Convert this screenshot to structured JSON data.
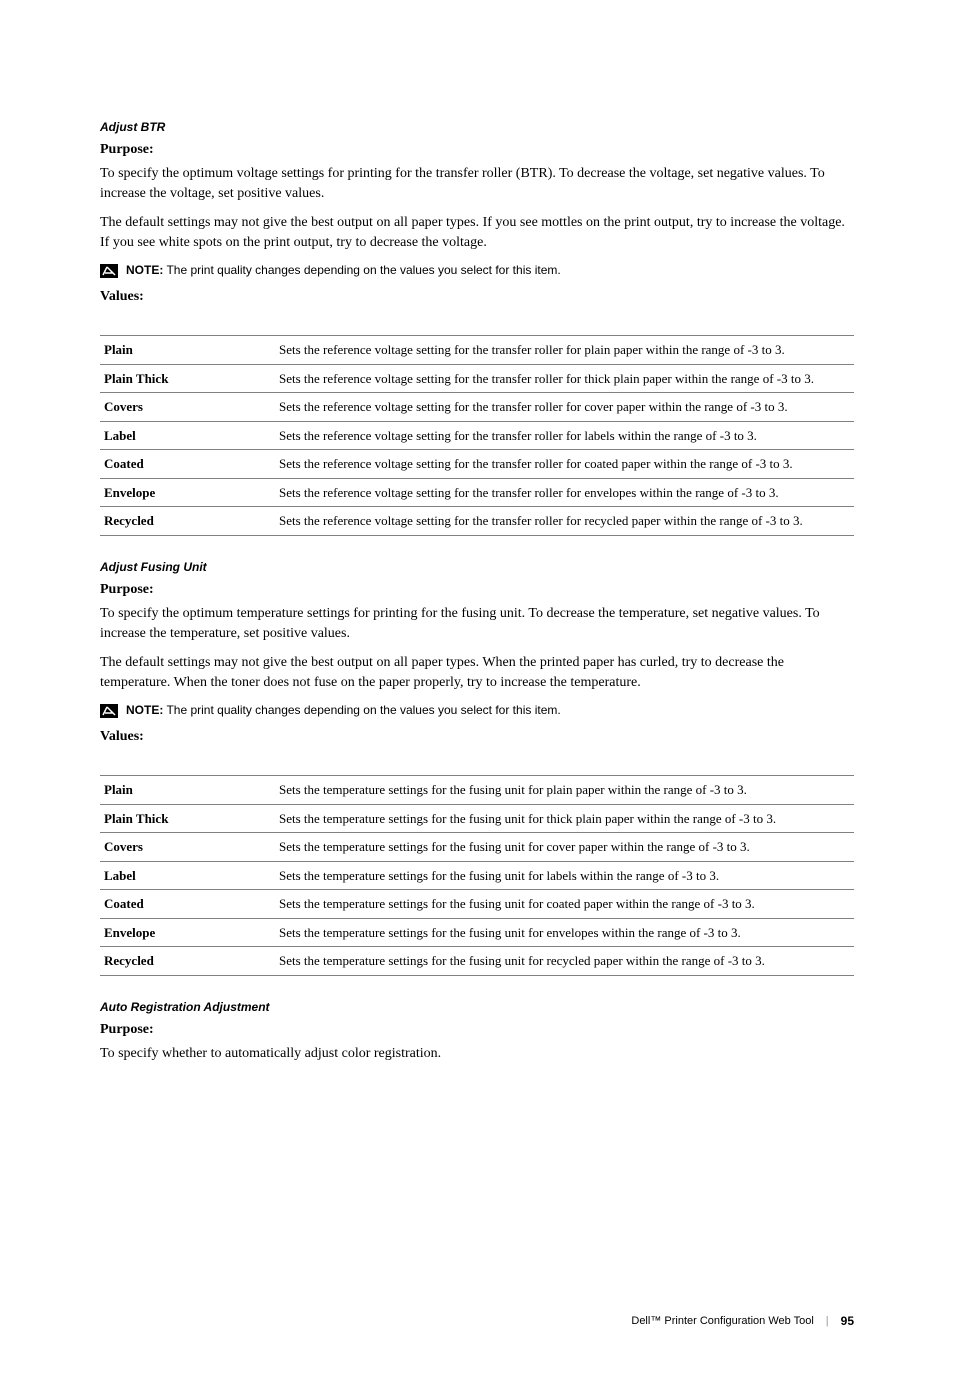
{
  "section1": {
    "heading": "Adjust BTR",
    "purposeLabel": "Purpose:",
    "purposeText1": "To specify the optimum voltage settings for printing for the transfer roller (BTR). To decrease the voltage, set negative values. To increase the voltage, set positive values.",
    "purposeText2": "The default settings may not give the best output on all paper types. If you see mottles on the print output, try to increase the voltage. If you see white spots on the print output, try to decrease the voltage.",
    "noteLabel": "NOTE:",
    "noteText": " The print quality changes depending on the values you select for this item.",
    "valuesLabel": "Values:",
    "rows": [
      {
        "name": "Plain",
        "desc": "Sets the reference voltage setting for the transfer roller for plain paper within the range of -3 to 3."
      },
      {
        "name": "Plain Thick",
        "desc": "Sets the reference voltage setting for the transfer roller for thick plain paper within the range of -3 to 3."
      },
      {
        "name": "Covers",
        "desc": "Sets the reference voltage setting for the transfer roller for cover paper within the range of -3 to 3."
      },
      {
        "name": "Label",
        "desc": "Sets the reference voltage setting for the transfer roller for labels within the range of -3 to 3."
      },
      {
        "name": "Coated",
        "desc": "Sets the reference voltage setting for the transfer roller for coated paper within the range of -3 to 3."
      },
      {
        "name": "Envelope",
        "desc": "Sets the reference voltage setting for the transfer roller for envelopes within the range of -3 to 3."
      },
      {
        "name": "Recycled",
        "desc": "Sets the reference voltage setting for the transfer roller for recycled paper within the range of -3 to 3."
      }
    ]
  },
  "section2": {
    "heading": "Adjust Fusing Unit",
    "purposeLabel": "Purpose:",
    "purposeText1": "To specify the optimum temperature settings for printing for the fusing unit. To decrease the temperature, set negative values. To increase the temperature, set positive values.",
    "purposeText2": "The default settings may not give the best output on all paper types. When the printed paper has curled, try to decrease the temperature. When the toner does not fuse on the paper properly, try to increase the temperature.",
    "noteLabel": "NOTE:",
    "noteText": " The print quality changes depending on the values you select for this item.",
    "valuesLabel": "Values:",
    "rows": [
      {
        "name": "Plain",
        "desc": "Sets the temperature settings for the fusing unit for plain paper within the range of -3 to 3."
      },
      {
        "name": "Plain Thick",
        "desc": "Sets the temperature settings for the fusing unit for thick plain paper within the range of -3 to 3."
      },
      {
        "name": "Covers",
        "desc": "Sets the temperature settings for the fusing unit for cover paper within the range of -3 to 3."
      },
      {
        "name": "Label",
        "desc": "Sets the temperature settings for the fusing unit for labels within the range of -3 to 3."
      },
      {
        "name": "Coated",
        "desc": "Sets the temperature settings for the fusing unit for coated paper within the range of -3 to 3."
      },
      {
        "name": "Envelope",
        "desc": "Sets the temperature settings for the fusing unit for envelopes within the range of -3 to 3."
      },
      {
        "name": "Recycled",
        "desc": "Sets the temperature settings for the fusing unit for recycled paper within the range of -3 to 3."
      }
    ]
  },
  "section3": {
    "heading": "Auto Registration Adjustment",
    "purposeLabel": "Purpose:",
    "purposeText1": "To specify whether to automatically adjust color registration."
  },
  "footer": {
    "title": "Dell™ Printer Configuration Web Tool",
    "sep": "|",
    "page": "95"
  },
  "styling": {
    "bodyFontSize": 14,
    "tableFontSize": 13,
    "headingFontSize": 12,
    "noteFontSize": 12,
    "borderColor": "#808080",
    "textColor": "#000000",
    "bgColor": "#ffffff"
  }
}
